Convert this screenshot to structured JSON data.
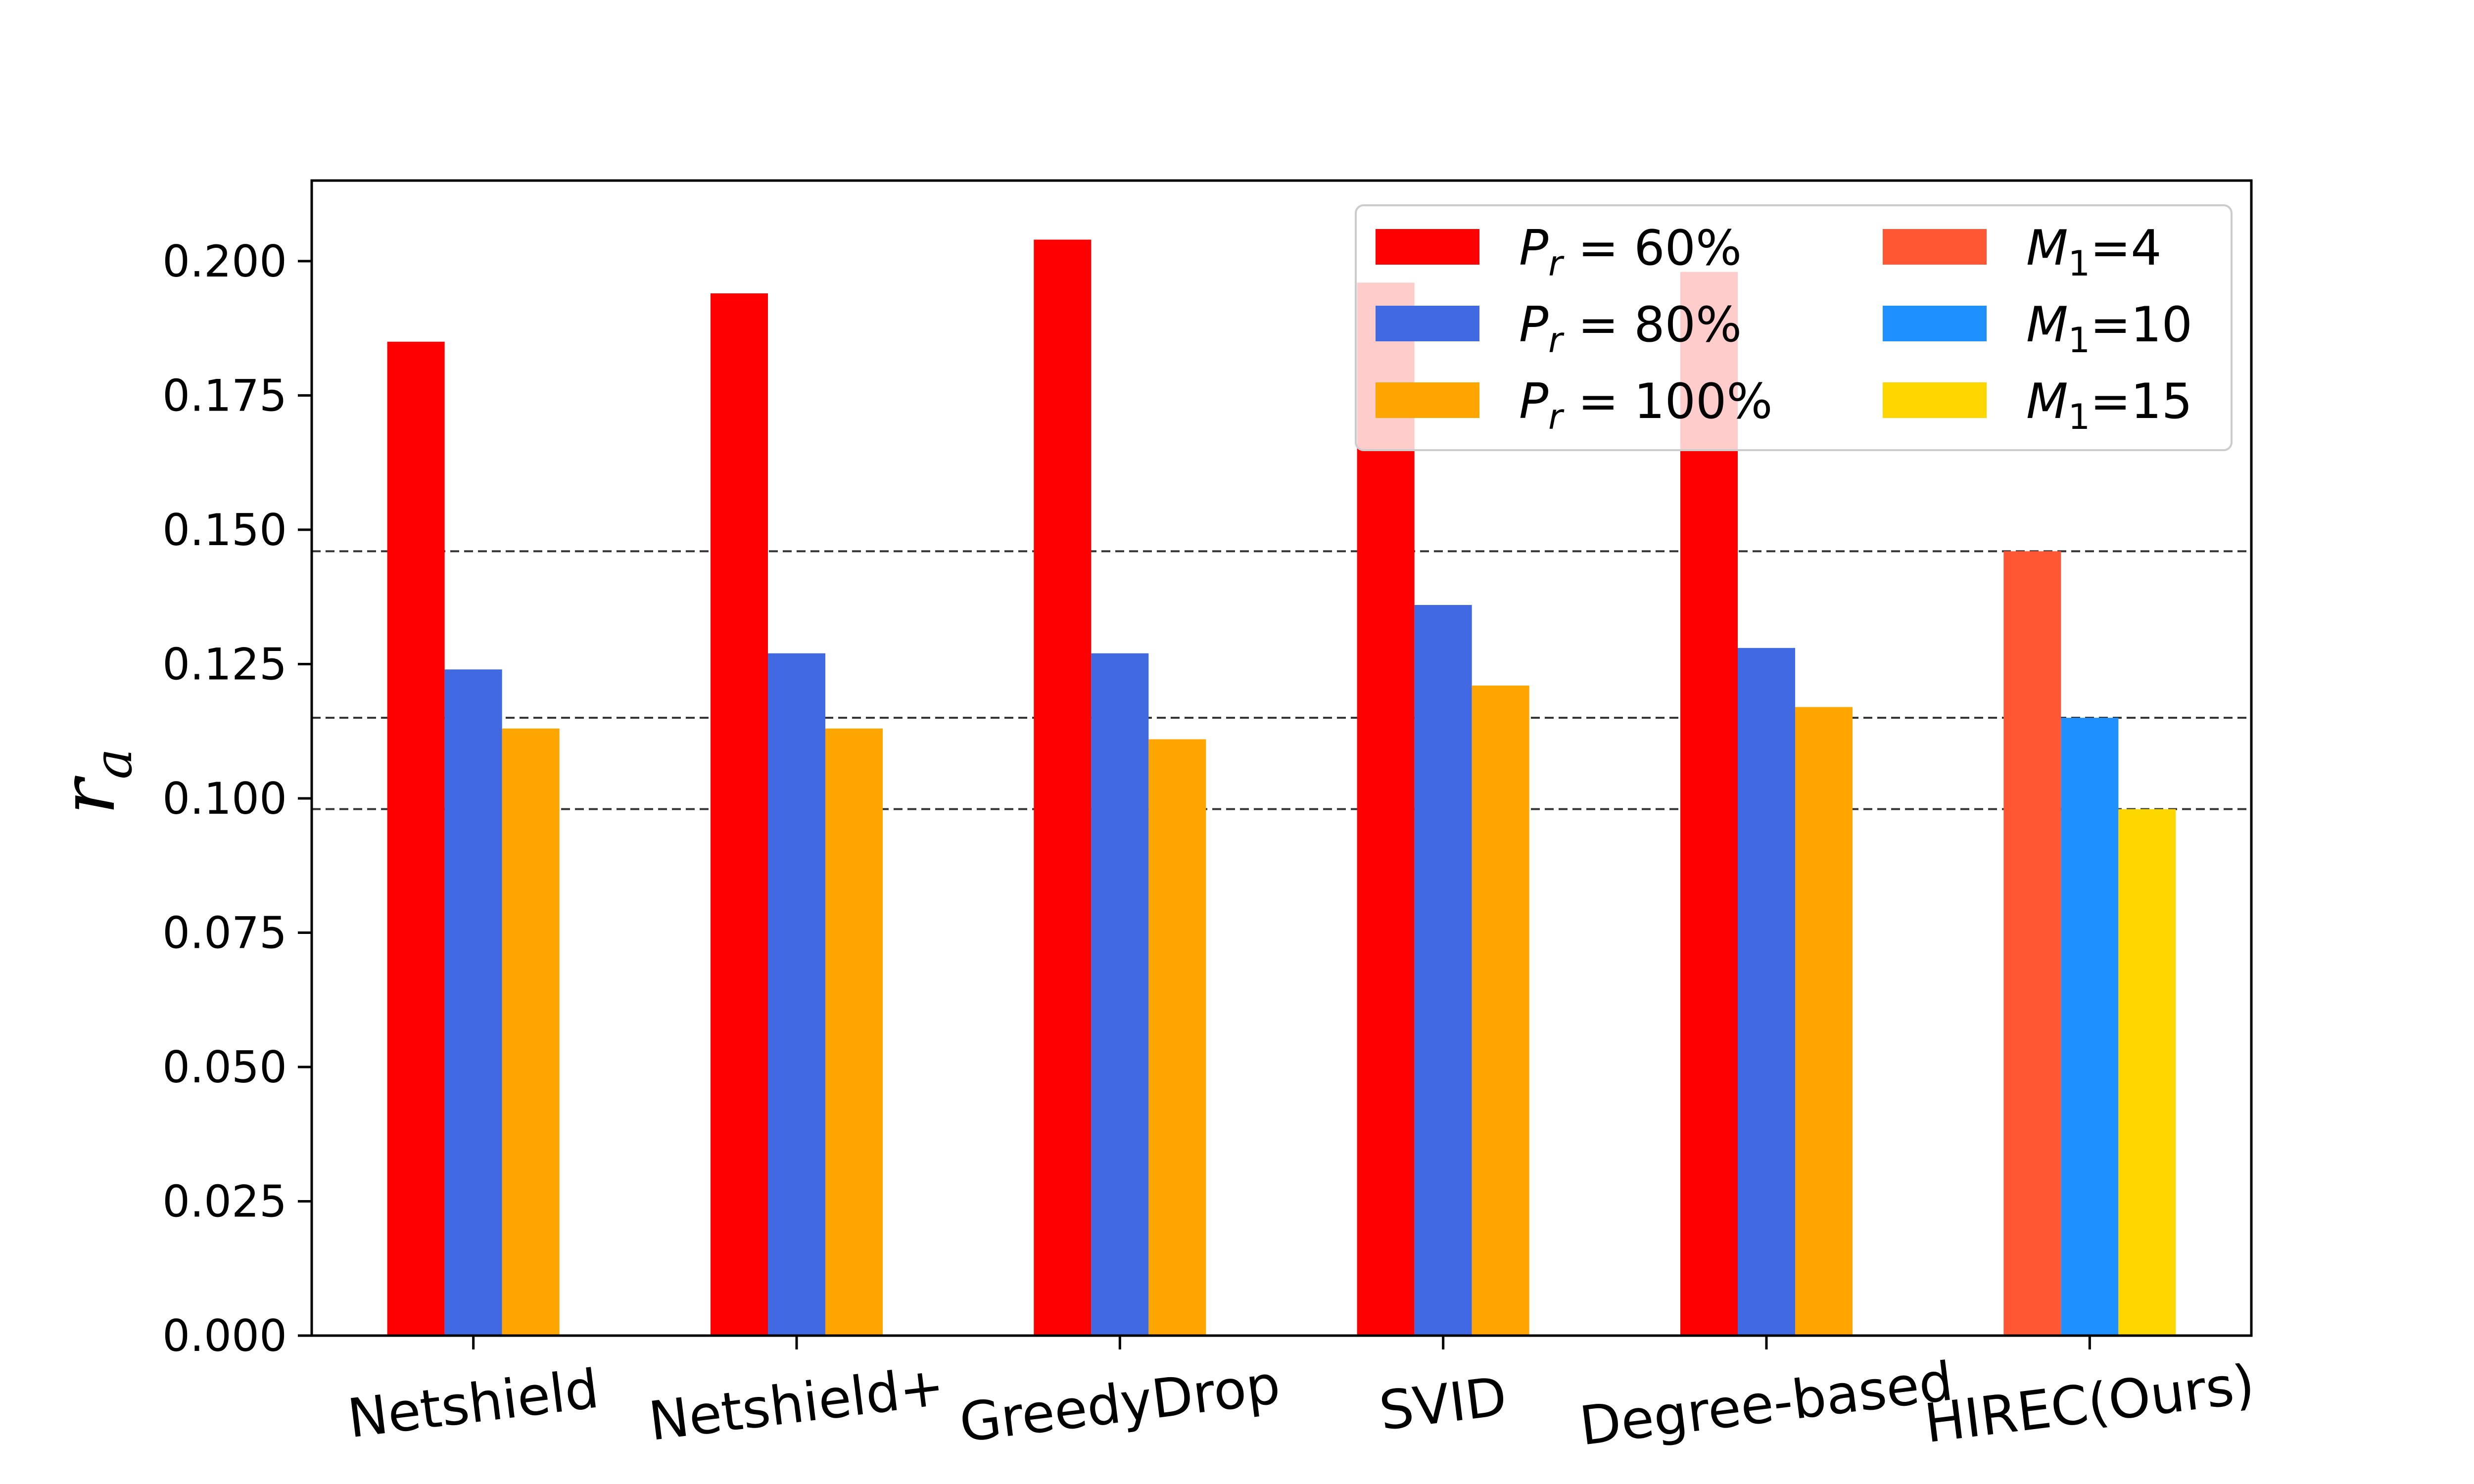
{
  "chart_data": {
    "type": "bar",
    "title": "",
    "xlabel": "",
    "ylabel": "r",
    "ylabel_subscript": "a",
    "ylim": [
      0,
      0.215
    ],
    "yticks": [
      "0.000",
      "0.025",
      "0.050",
      "0.075",
      "0.100",
      "0.125",
      "0.150",
      "0.175",
      "0.200"
    ],
    "ytick_values": [
      0,
      0.025,
      0.05,
      0.075,
      0.1,
      0.125,
      0.15,
      0.175,
      0.2
    ],
    "categories": [
      "Netshield",
      "Netshield+",
      "GreedyDrop",
      "SVID",
      "Degree-based",
      "HIREC(Ours)"
    ],
    "series": [
      {
        "name": "P_r = 60%",
        "values": [
          0.185,
          0.194,
          0.204,
          0.196,
          0.198,
          null
        ],
        "color": "#ff0000"
      },
      {
        "name": "P_r = 80%",
        "values": [
          0.124,
          0.127,
          0.127,
          0.136,
          0.128,
          null
        ],
        "color": "#4169e1"
      },
      {
        "name": "P_r = 100%",
        "values": [
          0.113,
          0.113,
          0.111,
          0.121,
          0.117,
          null
        ],
        "color": "#ffa500"
      },
      {
        "name": "M_1=4",
        "values": [
          null,
          null,
          null,
          null,
          null,
          0.146
        ],
        "color": "#ff5733"
      },
      {
        "name": "M_1=10",
        "values": [
          null,
          null,
          null,
          null,
          null,
          0.115
        ],
        "color": "#1e90ff"
      },
      {
        "name": "M_1=15",
        "values": [
          null,
          null,
          null,
          null,
          null,
          0.098
        ],
        "color": "#ffd700"
      }
    ],
    "reference_lines": [
      0.146,
      0.115,
      0.098
    ],
    "legend": {
      "placement": "top-right",
      "ncol": 2,
      "entries": [
        {
          "main": "P",
          "sub": "r",
          "rest": " = 60%",
          "color": "#ff0000"
        },
        {
          "main": "P",
          "sub": "r",
          "rest": " = 80%",
          "color": "#4169e1"
        },
        {
          "main": "P",
          "sub": "r",
          "rest": " = 100%",
          "color": "#ffa500"
        },
        {
          "main": "M",
          "sub": "1",
          "rest": "=4",
          "color": "#ff5733"
        },
        {
          "main": "M",
          "sub": "1",
          "rest": "=10",
          "color": "#1e90ff"
        },
        {
          "main": "M",
          "sub": "1",
          "rest": "=15",
          "color": "#ffd700"
        }
      ]
    },
    "grid": false
  }
}
